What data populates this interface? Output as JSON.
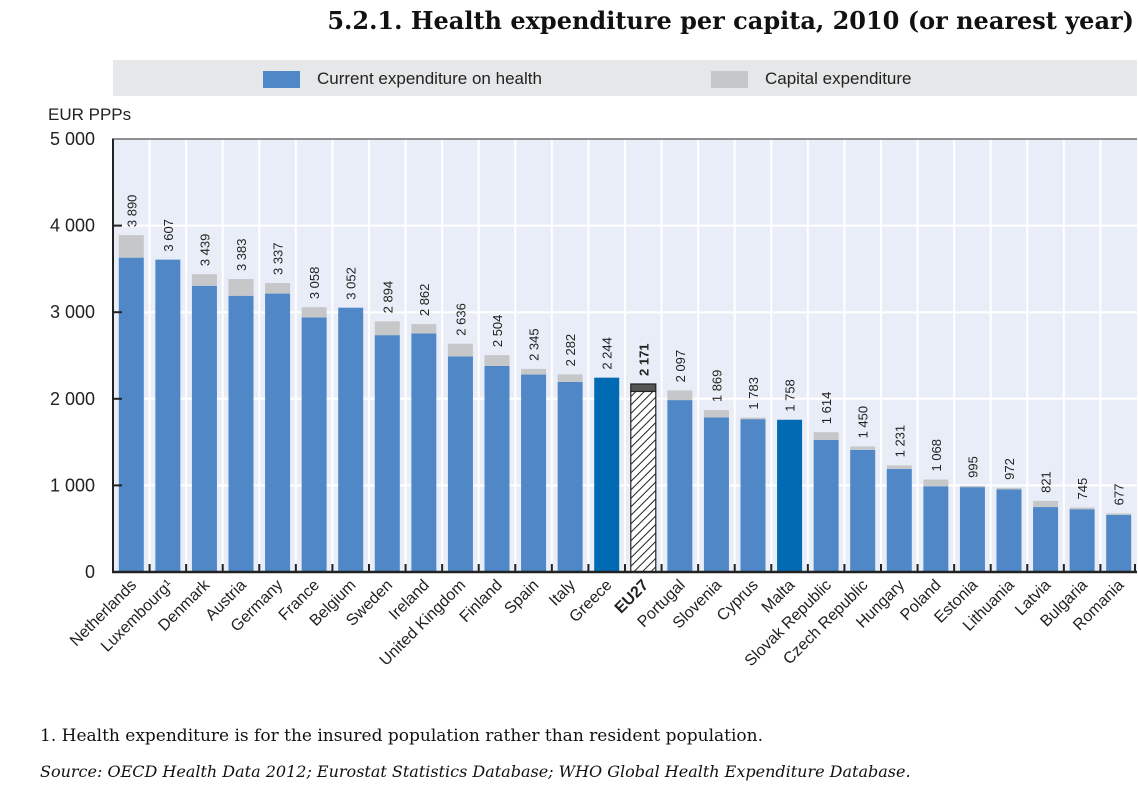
{
  "title": "5.2.1.  Health expenditure per capita, 2010 (or nearest year)",
  "legend": {
    "current_label": "Current expenditure on health",
    "capital_label": "Capital expenditure"
  },
  "colors": {
    "current": "#4f87c7",
    "highlight": "#006bb3",
    "capital": "#c5c7c9",
    "plot_bg": "#e8edf7",
    "eu_capital": "#555555",
    "axis": "#222222"
  },
  "footnote": "1.  Health expenditure is for the insured population rather than resident population.",
  "source": "Source:  OECD Health Data 2012; Eurostat Statistics Database; WHO Global Health Expenditure Database.",
  "chart_data": {
    "type": "bar",
    "stacked": true,
    "title": "5.2.1. Health expenditure per capita, 2010 (or nearest year)",
    "ylabel": "EUR PPPs",
    "xlabel": "",
    "ylim": [
      0,
      5000
    ],
    "yticks": [
      0,
      1000,
      2000,
      3000,
      4000,
      5000
    ],
    "ytick_labels": [
      "0",
      "1 000",
      "2 000",
      "3 000",
      "4 000",
      "5 000"
    ],
    "grid": true,
    "legend_position": "top",
    "categories": [
      "Netherlands",
      "Luxembourg¹",
      "Denmark",
      "Austria",
      "Germany",
      "France",
      "Belgium",
      "Sweden",
      "Ireland",
      "United Kingdom",
      "Finland",
      "Spain",
      "Italy",
      "Greece",
      "EU27",
      "Portugal",
      "Slovenia",
      "Cyprus",
      "Malta",
      "Slovak Republic",
      "Czech Republic",
      "Hungary",
      "Poland",
      "Estonia",
      "Lithuania",
      "Latvia",
      "Bulgaria",
      "Romania"
    ],
    "totals": [
      3890,
      3607,
      3439,
      3383,
      3337,
      3058,
      3052,
      2894,
      2862,
      2636,
      2504,
      2345,
      2282,
      2244,
      2171,
      2097,
      1869,
      1783,
      1758,
      1614,
      1450,
      1231,
      1068,
      995,
      972,
      821,
      745,
      677
    ],
    "total_labels": [
      "3 890",
      "3 607",
      "3 439",
      "3 383",
      "3 337",
      "3 058",
      "3 052",
      "2 894",
      "2 862",
      "2 636",
      "2 504",
      "2 345",
      "2 282",
      "2 244",
      "2 171",
      "2 097",
      "1 869",
      "1 783",
      "1 758",
      "1 614",
      "1 450",
      "1 231",
      "1 068",
      "995",
      "972",
      "821",
      "745",
      "677"
    ],
    "series": [
      {
        "name": "Current expenditure on health",
        "values": [
          3630,
          3607,
          3305,
          3190,
          3215,
          2940,
          3052,
          2735,
          2755,
          2490,
          2380,
          2280,
          2195,
          2244,
          2085,
          1985,
          1785,
          1765,
          1758,
          1525,
          1410,
          1190,
          990,
          980,
          955,
          750,
          725,
          660
        ]
      },
      {
        "name": "Capital expenditure",
        "values": [
          260,
          0,
          134,
          193,
          122,
          118,
          0,
          159,
          107,
          146,
          124,
          65,
          87,
          0,
          86,
          112,
          84,
          18,
          0,
          89,
          40,
          41,
          78,
          15,
          17,
          71,
          20,
          17
        ]
      }
    ],
    "highlighted": [
      "Greece",
      "Malta"
    ],
    "bold_categories": [
      "EU27"
    ],
    "hatched_categories": [
      "EU27"
    ]
  }
}
